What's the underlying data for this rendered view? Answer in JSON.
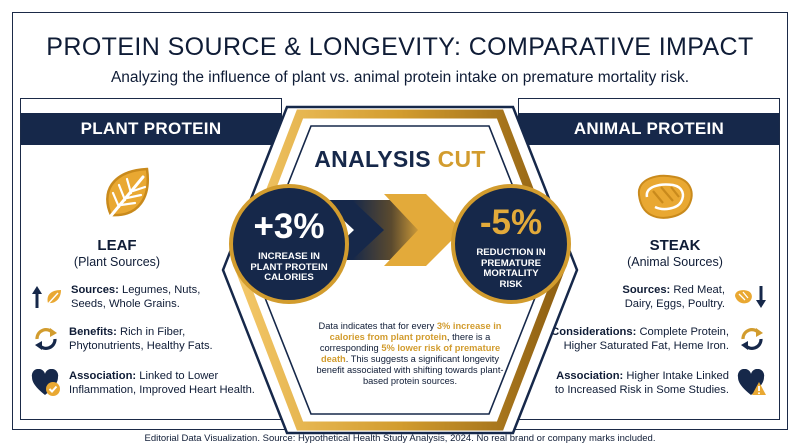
{
  "header": {
    "title": "PROTEIN SOURCE & LONGEVITY: COMPARATIVE IMPACT",
    "subtitle": "Analyzing the influence of plant vs. animal protein intake on premature mortality risk."
  },
  "plant": {
    "banner": "PLANT PROTEIN",
    "icon": "leaf-icon",
    "name": "LEAF",
    "sub": "(Plant Sources)",
    "rows": [
      {
        "label": "Sources:",
        "text1": " Legumes, Nuts,",
        "text2": "Seeds, Whole Grains."
      },
      {
        "label": "Benefits:",
        "text1": " Rich in Fiber,",
        "text2": "Phytonutrients, Healthy Fats."
      },
      {
        "label": "Association:",
        "text1": " Linked to Lower",
        "text2": "Inflammation, Improved Heart Health."
      }
    ]
  },
  "animal": {
    "banner": "ANIMAL PROTEIN",
    "icon": "steak-icon",
    "name": "STEAK",
    "sub": "(Animal Sources)",
    "rows": [
      {
        "label": "Sources:",
        "text1": " Red Meat,",
        "text2": "Dairy, Eggs, Poultry."
      },
      {
        "label": "Considerations:",
        "text1": " Complete Protein,",
        "text2": "Higher Saturated Fat, Heme Iron."
      },
      {
        "label": "Association:",
        "text1": " Higher Intake Linked",
        "text2": "to Increased Risk in Some Studies."
      }
    ]
  },
  "center": {
    "heading_a": "ANALYSIS",
    "heading_b": "CUT",
    "left_value": "+3%",
    "left_label": [
      "INCREASE IN",
      "PLANT PROTEIN",
      "CALORIES"
    ],
    "right_value": "-5%",
    "right_label": [
      "REDUCTION IN",
      "PREMATURE",
      "MORTALITY",
      "RISK"
    ],
    "desc": {
      "p1": "Data indicates that for every ",
      "h1": "3% increase in calories from plant protein",
      "p2": ", there is a corresponding ",
      "h2": "5% lower risk of premature death",
      "p3": ". This suggests a significant longevity benefit associated with shifting towards plant-based protein sources."
    }
  },
  "footer": "Editorial Data Visualization. Source: Hypothetical Health Study Analysis, 2024. No real brand or company marks included.",
  "colors": {
    "navy": "#16284a",
    "gold": "#d29c2e"
  }
}
